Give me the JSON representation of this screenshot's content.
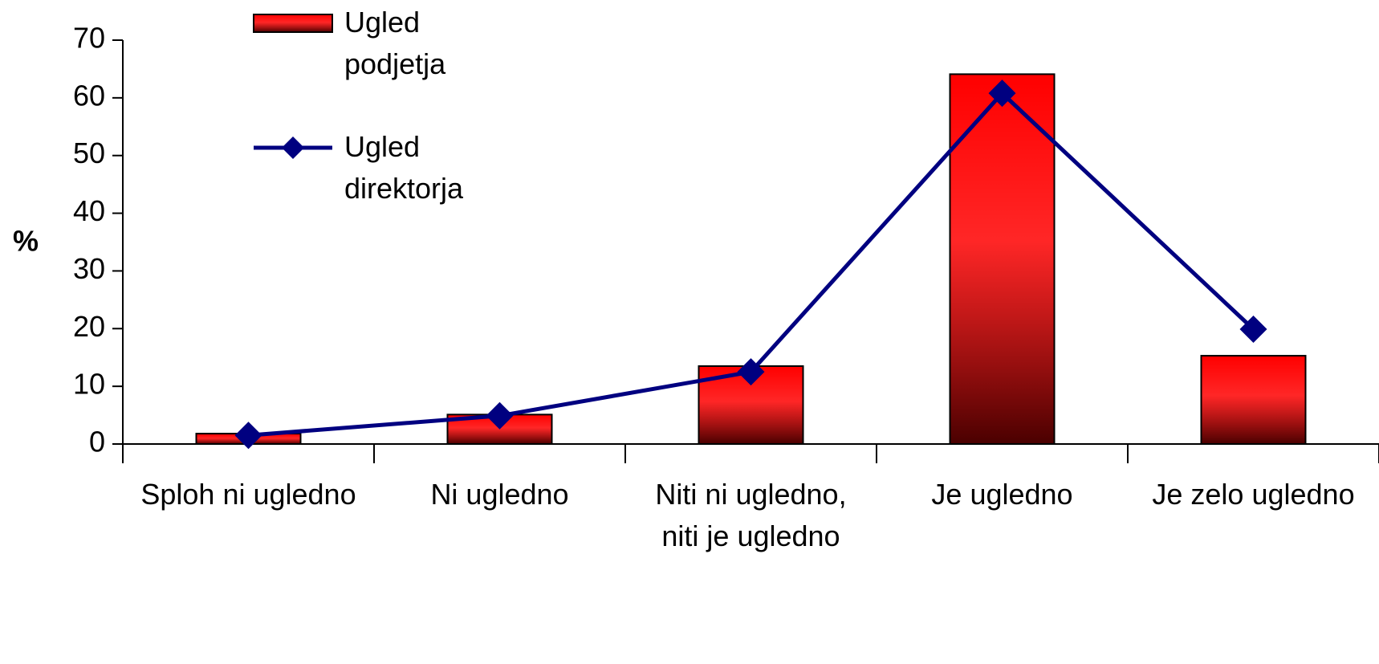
{
  "chart_data": {
    "type": "bar-line",
    "y_label": "%",
    "categories": [
      "Sploh ni ugledno",
      "Ni ugledno",
      "Niti ni ugledno, niti je ugledno",
      "Je ugledno",
      "Je zelo ugledno"
    ],
    "series": [
      {
        "name": "Ugled podjetja",
        "type": "bar",
        "color": "#ff0000",
        "values": [
          1.8,
          5.1,
          13.5,
          64.1,
          15.3
        ]
      },
      {
        "name": "Ugled direktorja",
        "type": "line",
        "color": "#000080",
        "values": [
          1.5,
          4.9,
          12.5,
          60.8,
          19.9
        ]
      }
    ],
    "ylim": [
      0,
      70
    ],
    "yticks": [
      0,
      10,
      20,
      30,
      40,
      50,
      60,
      70
    ],
    "legend": "top-left"
  }
}
